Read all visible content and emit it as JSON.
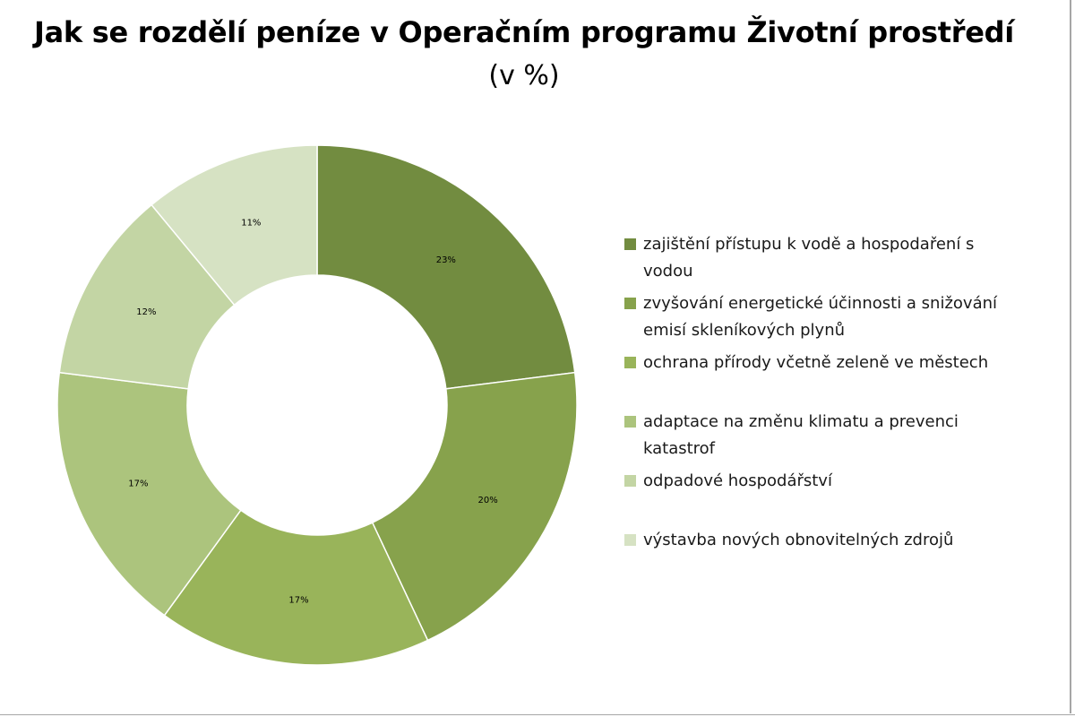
{
  "chart_data": {
    "type": "donut",
    "title": "Jak se rozdělí peníze v Operačním programu Životní prostředí",
    "subtitle": "(v %)",
    "categories": [
      "zajištění přístupu k vodě a hospodaření s vodou",
      "zvyšování energetické účinnosti a snižování emisí skleníkových plynů",
      "ochrana přírody včetně zeleně ve městech",
      "adaptace na změnu klimatu a prevenci katastrof",
      "odpadové hospodářství",
      "výstavba nových obnovitelných zdrojů"
    ],
    "values": [
      23,
      20,
      17,
      17,
      12,
      11
    ],
    "data_labels": [
      "23%",
      "20%",
      "17%",
      "17%",
      "12%",
      "11%"
    ],
    "colors": [
      "#728c40",
      "#87a24c",
      "#99b45a",
      "#acc47d",
      "#c3d5a4",
      "#d6e2c3"
    ],
    "legend_position": "right"
  }
}
